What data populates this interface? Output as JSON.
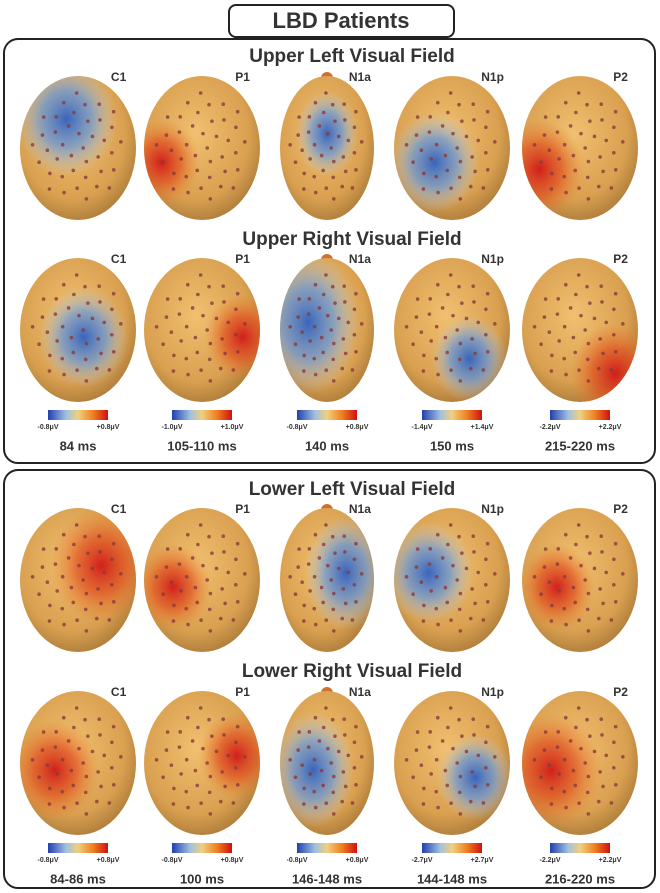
{
  "title": "LBD Patients",
  "panels": [
    {
      "sections": [
        {
          "title": "Upper Left  Visual Field",
          "components": [
            "C1",
            "P1",
            "N1a",
            "N1p",
            "P2"
          ]
        },
        {
          "title": "Upper Right  Visual Field",
          "components": [
            "C1",
            "P1",
            "N1a",
            "N1p",
            "P2"
          ]
        }
      ],
      "scales": [
        {
          "min": "-0.8μV",
          "max": "+0.8μV"
        },
        {
          "min": "-1.0μV",
          "max": "+1.0μV"
        },
        {
          "min": "-0.8μV",
          "max": "+0.8μV"
        },
        {
          "min": "-1.4μV",
          "max": "+1.4μV"
        },
        {
          "min": "-2.2μV",
          "max": "+2.2μV"
        }
      ],
      "times": [
        "84 ms",
        "105-110 ms",
        "140 ms",
        "150 ms",
        "215-220 ms"
      ]
    },
    {
      "sections": [
        {
          "title": "Lower Left  Visual Field",
          "components": [
            "C1",
            "P1",
            "N1a",
            "N1p",
            "P2"
          ]
        },
        {
          "title": "Lower Right  Visual Field",
          "components": [
            "C1",
            "P1",
            "N1a",
            "N1p",
            "P2"
          ]
        }
      ],
      "scales": [
        {
          "min": "-0.8μV",
          "max": "+0.8μV"
        },
        {
          "min": "-0.8μV",
          "max": "+0.8μV"
        },
        {
          "min": "-0.8μV",
          "max": "+0.8μV"
        },
        {
          "min": "-2.7μV",
          "max": "+2.7μV"
        },
        {
          "min": "-2.2μV",
          "max": "+2.2μV"
        }
      ],
      "times": [
        "84-86 ms",
        "100 ms",
        "146-148 ms",
        "144-148 ms",
        "216-220 ms"
      ]
    }
  ]
}
